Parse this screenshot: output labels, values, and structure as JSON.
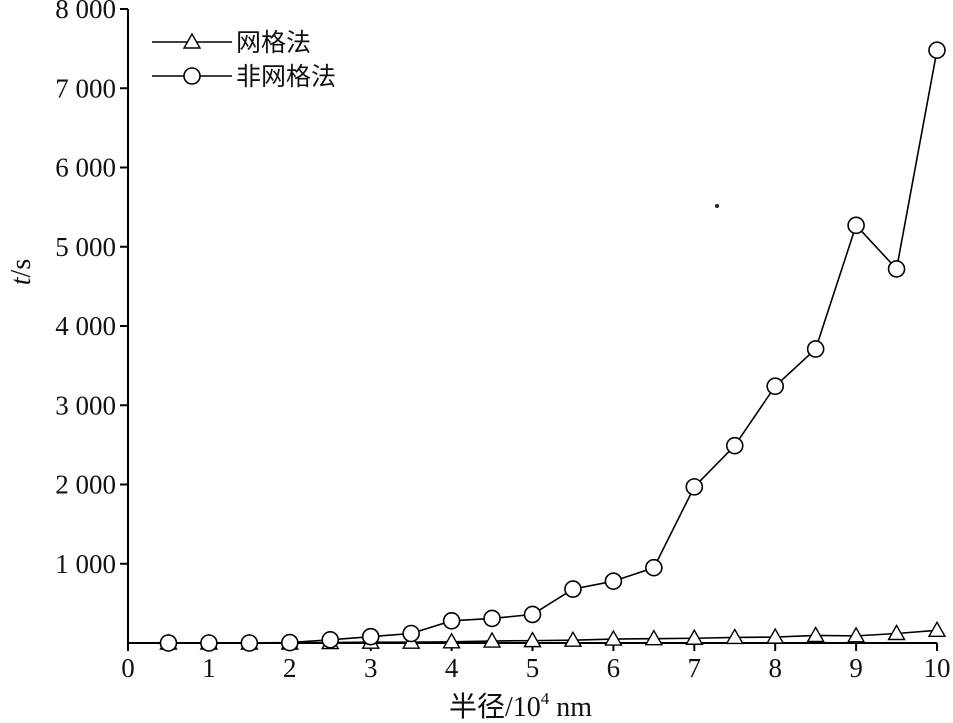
{
  "chart_data": {
    "type": "line",
    "xlabel": "半径/10",
    "xlabel_sup": "4",
    "xlabel_unit": " nm",
    "ylabel_italic": "t",
    "ylabel_rest": "/s",
    "xlim": [
      0,
      10
    ],
    "ylim": [
      0,
      8000
    ],
    "x_ticks": [
      0,
      1,
      2,
      3,
      4,
      5,
      6,
      7,
      8,
      9,
      10
    ],
    "x_tick_labels": [
      "0",
      "1",
      "2",
      "3",
      "4",
      "5",
      "6",
      "7",
      "8",
      "9",
      "10"
    ],
    "y_ticks": [
      1000,
      2000,
      3000,
      4000,
      5000,
      6000,
      7000,
      8000
    ],
    "y_tick_labels": [
      "1 000",
      "2 000",
      "3 000",
      "4 000",
      "5 000",
      "6 000",
      "7 000",
      "8 000"
    ],
    "grid": false,
    "legend_position": "top-left",
    "x": [
      0.5,
      1,
      1.5,
      2,
      2.5,
      3,
      3.5,
      4,
      4.5,
      5,
      5.5,
      6,
      6.5,
      7,
      7.5,
      8,
      8.5,
      9,
      9.5,
      10
    ],
    "series": [
      {
        "name": "网格法",
        "marker": "triangle",
        "values": [
          0,
          0,
          0,
          0,
          5,
          10,
          10,
          15,
          25,
          30,
          35,
          50,
          55,
          60,
          70,
          75,
          95,
          90,
          120,
          160
        ]
      },
      {
        "name": "非网格法",
        "marker": "circle",
        "values": [
          0,
          0,
          0,
          5,
          40,
          80,
          120,
          280,
          310,
          360,
          680,
          780,
          950,
          1970,
          2490,
          3240,
          3710,
          5270,
          4720,
          7480
        ]
      }
    ]
  }
}
